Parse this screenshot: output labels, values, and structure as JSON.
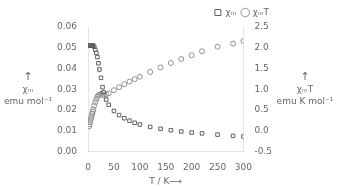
{
  "chart_data": {
    "type": "scatter",
    "xlabel": "T / K⟶",
    "ylabel": [
      "↑",
      "χₘ",
      "emu mol⁻¹"
    ],
    "y2label": [
      "↑",
      "χₘT",
      "emu K mol⁻¹"
    ],
    "x": [
      2,
      3,
      4,
      5,
      6,
      7,
      8,
      9,
      10,
      12,
      14,
      16,
      18,
      20,
      22,
      25,
      28,
      30,
      35,
      40,
      50,
      60,
      70,
      80,
      90,
      100,
      120,
      140,
      160,
      180,
      200,
      220,
      250,
      280,
      300
    ],
    "series": [
      {
        "name": "χₘ",
        "color": "#606060",
        "marker": "square",
        "values": [
          0.051,
          0.051,
          0.051,
          0.051,
          0.051,
          0.051,
          0.051,
          0.051,
          0.051,
          0.0505,
          0.049,
          0.0475,
          0.0455,
          0.0425,
          0.0395,
          0.0355,
          0.031,
          0.0285,
          0.025,
          0.0225,
          0.0195,
          0.0175,
          0.016,
          0.0148,
          0.0138,
          0.013,
          0.0118,
          0.0109,
          0.0102,
          0.0096,
          0.0091,
          0.0087,
          0.0081,
          0.0075,
          0.0072
        ]
      },
      {
        "name": "χₘT",
        "color": "#909090",
        "marker": "circle",
        "axis": "y2",
        "values": [
          0.102,
          0.153,
          0.204,
          0.255,
          0.306,
          0.357,
          0.408,
          0.459,
          0.51,
          0.606,
          0.686,
          0.76,
          0.819,
          0.85,
          0.869,
          0.8875,
          0.868,
          0.855,
          0.875,
          0.9,
          0.975,
          1.05,
          1.12,
          1.184,
          1.242,
          1.3,
          1.416,
          1.526,
          1.632,
          1.728,
          1.82,
          1.914,
          2.025,
          2.1,
          2.16
        ]
      }
    ],
    "xlim": [
      0,
      300
    ],
    "xticks": [
      0,
      50,
      100,
      150,
      200,
      250,
      300
    ],
    "ylim": [
      0.0,
      0.06
    ],
    "yticks": [
      {
        "value": 0.0,
        "label": "0.00"
      },
      0.01,
      0.02,
      0.03,
      0.04,
      0.05,
      0.06
    ],
    "y2lim": [
      -0.5,
      2.5
    ],
    "y2ticks": [
      -0.5,
      {
        "value": 0.0,
        "label": "0.0"
      },
      0.5,
      {
        "value": 1.0,
        "label": "1.0"
      },
      1.5,
      {
        "value": 2.0,
        "label": "2.0"
      },
      2.5
    ],
    "grid": false,
    "legend": "upper right"
  }
}
